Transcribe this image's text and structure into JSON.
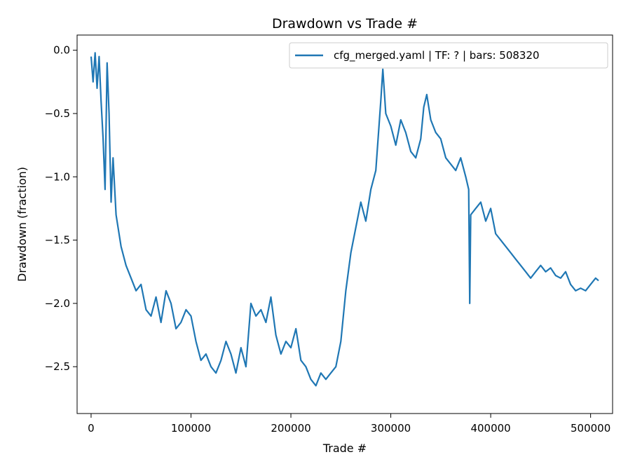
{
  "chart_data": {
    "type": "line",
    "title": "Drawdown vs Trade #",
    "xlabel": "Trade #",
    "ylabel": "Drawdown (fraction)",
    "xlim": [
      -14000,
      522000
    ],
    "ylim": [
      -2.87,
      0.12
    ],
    "xticks": [
      0,
      100000,
      200000,
      300000,
      400000,
      500000
    ],
    "xtick_labels": [
      "0",
      "100000",
      "200000",
      "300000",
      "400000",
      "500000"
    ],
    "yticks": [
      0.0,
      -0.5,
      -1.0,
      -1.5,
      -2.0,
      -2.5
    ],
    "ytick_labels": [
      "0.0",
      "−0.5",
      "−1.0",
      "−1.5",
      "−2.0",
      "−2.5"
    ],
    "grid": false,
    "legend_position": "top-right",
    "series": [
      {
        "name": "cfg_merged.yaml | TF: ? | bars: 508320",
        "color": "#1f77b4",
        "x": [
          0,
          2000,
          4000,
          6000,
          8000,
          10000,
          12000,
          14000,
          16000,
          18000,
          20000,
          22000,
          25000,
          30000,
          35000,
          40000,
          45000,
          50000,
          55000,
          60000,
          65000,
          70000,
          75000,
          80000,
          85000,
          90000,
          95000,
          100000,
          105000,
          110000,
          115000,
          120000,
          125000,
          130000,
          135000,
          140000,
          145000,
          150000,
          155000,
          160000,
          165000,
          170000,
          175000,
          180000,
          185000,
          190000,
          195000,
          200000,
          205000,
          210000,
          215000,
          220000,
          225000,
          230000,
          235000,
          240000,
          245000,
          250000,
          255000,
          260000,
          265000,
          270000,
          275000,
          280000,
          285000,
          290000,
          292000,
          295000,
          300000,
          305000,
          310000,
          315000,
          320000,
          325000,
          330000,
          333000,
          336000,
          340000,
          345000,
          350000,
          355000,
          360000,
          365000,
          370000,
          375000,
          378000,
          379000,
          380000,
          385000,
          390000,
          395000,
          400000,
          405000,
          410000,
          415000,
          420000,
          425000,
          430000,
          435000,
          440000,
          445000,
          450000,
          455000,
          460000,
          465000,
          470000,
          475000,
          480000,
          485000,
          490000,
          495000,
          500000,
          505000,
          508000
        ],
        "y": [
          -0.05,
          -0.25,
          -0.02,
          -0.3,
          -0.05,
          -0.4,
          -0.7,
          -1.1,
          -0.1,
          -0.5,
          -1.2,
          -0.85,
          -1.3,
          -1.55,
          -1.7,
          -1.8,
          -1.9,
          -1.85,
          -2.05,
          -2.1,
          -1.95,
          -2.15,
          -1.9,
          -2.0,
          -2.2,
          -2.15,
          -2.05,
          -2.1,
          -2.3,
          -2.45,
          -2.4,
          -2.5,
          -2.55,
          -2.45,
          -2.3,
          -2.4,
          -2.55,
          -2.35,
          -2.5,
          -2.0,
          -2.1,
          -2.05,
          -2.15,
          -1.95,
          -2.25,
          -2.4,
          -2.3,
          -2.35,
          -2.2,
          -2.45,
          -2.5,
          -2.6,
          -2.65,
          -2.55,
          -2.6,
          -2.55,
          -2.5,
          -2.3,
          -1.9,
          -1.6,
          -1.4,
          -1.2,
          -1.35,
          -1.1,
          -0.95,
          -0.4,
          -0.15,
          -0.5,
          -0.6,
          -0.75,
          -0.55,
          -0.65,
          -0.8,
          -0.85,
          -0.7,
          -0.45,
          -0.35,
          -0.55,
          -0.65,
          -0.7,
          -0.85,
          -0.9,
          -0.95,
          -0.85,
          -1.0,
          -1.1,
          -2.0,
          -1.3,
          -1.25,
          -1.2,
          -1.35,
          -1.25,
          -1.45,
          -1.5,
          -1.55,
          -1.6,
          -1.65,
          -1.7,
          -1.75,
          -1.8,
          -1.75,
          -1.7,
          -1.75,
          -1.72,
          -1.78,
          -1.8,
          -1.75,
          -1.85,
          -1.9,
          -1.88,
          -1.9,
          -1.85,
          -1.8,
          -1.82
        ]
      }
    ]
  }
}
